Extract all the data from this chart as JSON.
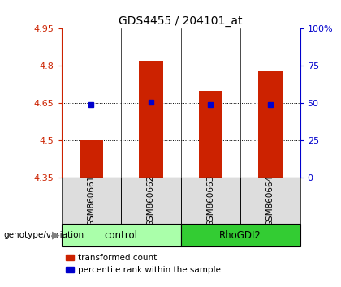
{
  "title": "GDS4455 / 204101_at",
  "samples": [
    "GSM860661",
    "GSM860662",
    "GSM860663",
    "GSM860664"
  ],
  "bar_values": [
    4.503,
    4.822,
    4.7,
    4.78
  ],
  "dot_values": [
    4.645,
    4.655,
    4.645,
    4.645
  ],
  "ylim_left": [
    4.35,
    4.95
  ],
  "ylim_right": [
    0,
    100
  ],
  "yticks_left": [
    4.35,
    4.5,
    4.65,
    4.8,
    4.95
  ],
  "yticks_right": [
    0,
    25,
    50,
    75,
    100
  ],
  "ytick_labels_right": [
    "0",
    "25",
    "50",
    "75",
    "100%"
  ],
  "bar_color": "#cc2200",
  "dot_color": "#0000cc",
  "bar_width": 0.4,
  "groups": [
    {
      "label": "control",
      "samples": [
        0,
        1
      ],
      "color": "#aaffaa"
    },
    {
      "label": "RhoGDI2",
      "samples": [
        2,
        3
      ],
      "color": "#33cc33"
    }
  ],
  "group_label": "genotype/variation",
  "legend_bar": "transformed count",
  "legend_dot": "percentile rank within the sample",
  "bg_color": "#ffffff",
  "plot_bg": "#ffffff",
  "left_axis_color": "#cc2200",
  "right_axis_color": "#0000cc"
}
